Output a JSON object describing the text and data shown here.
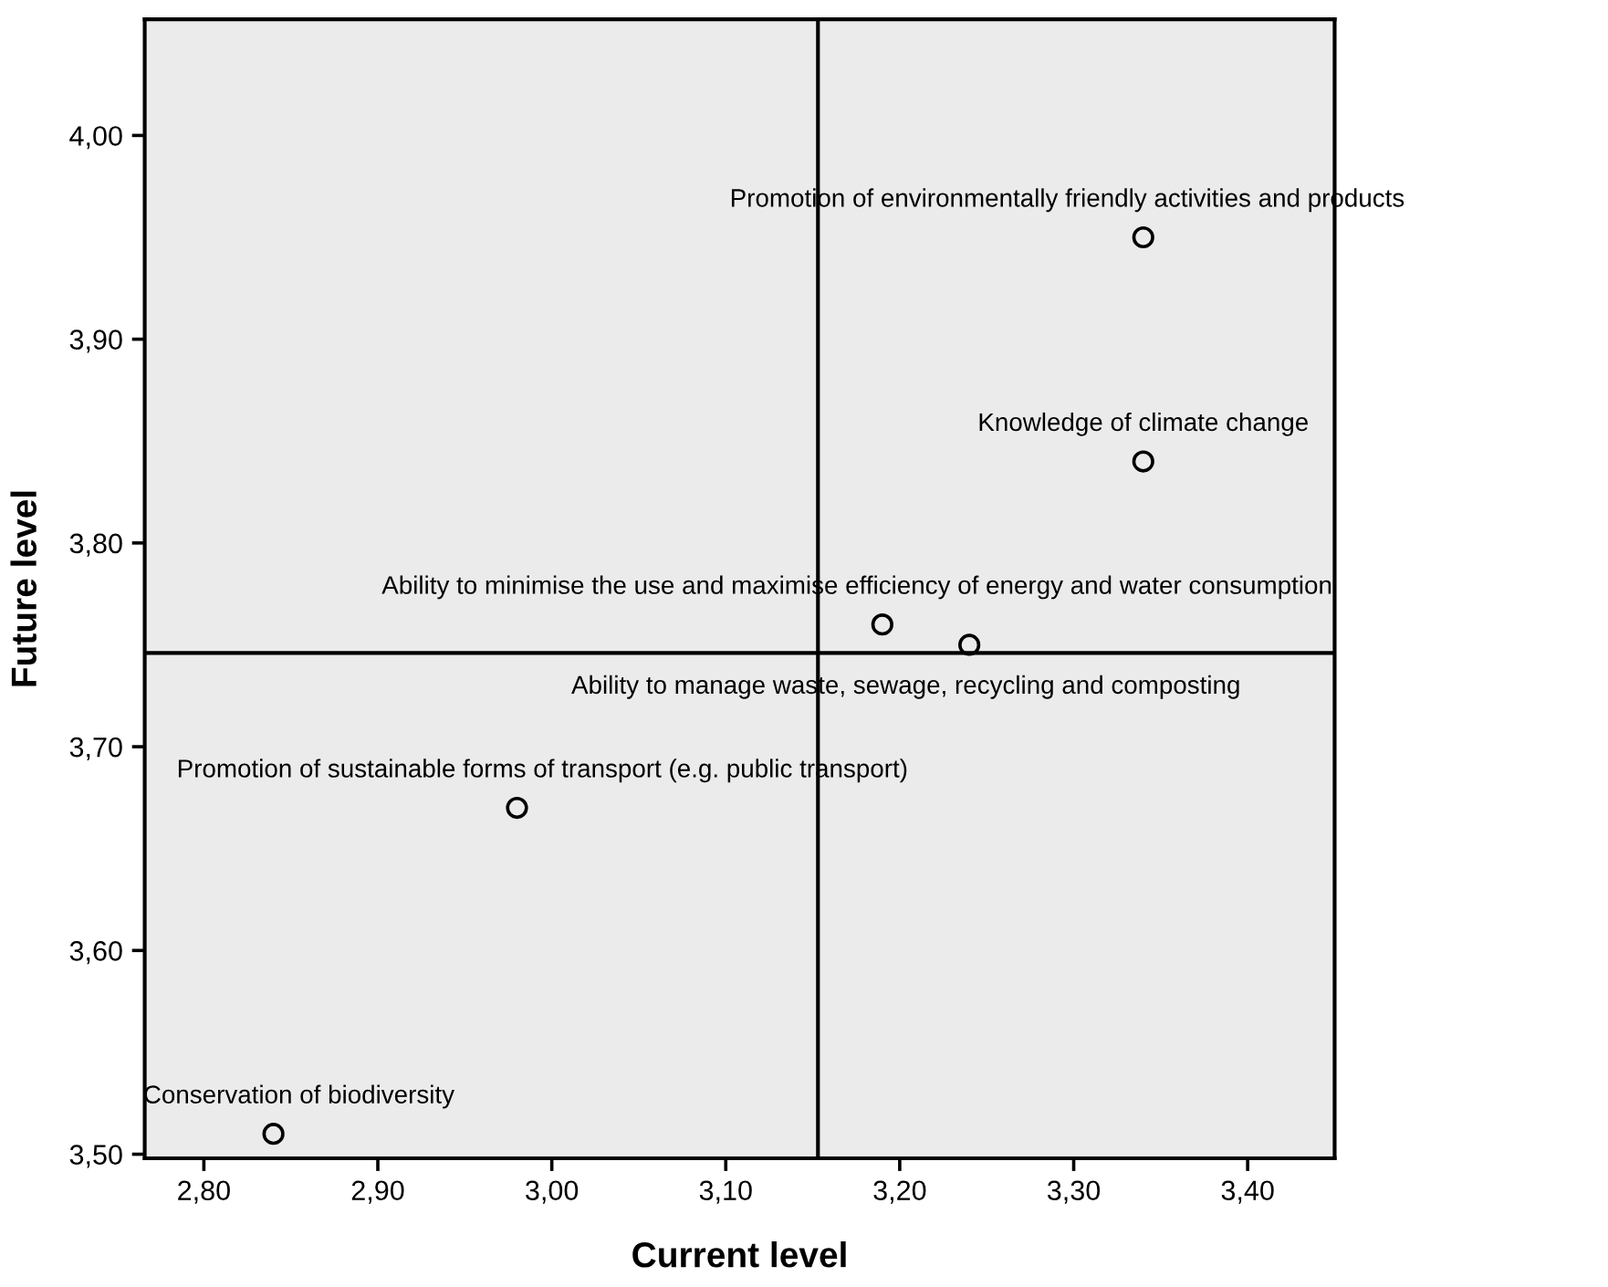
{
  "chart_data": {
    "type": "scatter",
    "xlabel": "Current level",
    "ylabel": "Future level",
    "x": [
      3.34,
      3.34,
      3.19,
      3.24,
      2.98,
      2.84
    ],
    "values": [
      3.95,
      3.84,
      3.76,
      3.75,
      3.67,
      3.51
    ],
    "color": "#000000",
    "marker": "circle",
    "grid": false,
    "legend": false,
    "xlim": [
      2.766,
      3.45
    ],
    "ylim": [
      3.498,
      4.057
    ],
    "xticks": [
      {
        "value": 2.8,
        "label": "2,80"
      },
      {
        "value": 2.9,
        "label": "2,90"
      },
      {
        "value": 3.0,
        "label": "3,00"
      },
      {
        "value": 3.1,
        "label": "3,10"
      },
      {
        "value": 3.2,
        "label": "3,20"
      },
      {
        "value": 3.3,
        "label": "3,30"
      },
      {
        "value": 3.4,
        "label": "3,40"
      }
    ],
    "yticks": [
      {
        "value": 3.5,
        "label": "3,50"
      },
      {
        "value": 3.6,
        "label": "3,60"
      },
      {
        "value": 3.7,
        "label": "3,70"
      },
      {
        "value": 3.8,
        "label": "3,80"
      },
      {
        "value": 3.9,
        "label": "3,90"
      },
      {
        "value": 4.0,
        "label": "4,00"
      }
    ],
    "ref_lines": [
      {
        "axis": "x",
        "value": 3.153,
        "color": "#000000"
      },
      {
        "axis": "y",
        "value": 3.746,
        "color": "#000000"
      }
    ],
    "annotations": [
      {
        "text": "Promotion of environmentally friendly activities and products",
        "x": 3.34,
        "y": 3.95
      },
      {
        "text": "Knowledge of climate change",
        "x": 3.34,
        "y": 3.84
      },
      {
        "text": "Ability to minimise the use and maximise efficiency of energy and water consumption",
        "x": 3.19,
        "y": 3.76
      },
      {
        "text": "Ability to manage waste, sewage, recycling and composting",
        "x": 3.24,
        "y": 3.75
      },
      {
        "text": "Promotion of sustainable forms of transport (e.g. public transport)",
        "x": 2.98,
        "y": 3.67
      },
      {
        "text": "Conservation of biodiversity",
        "x": 2.84,
        "y": 3.51
      }
    ]
  }
}
